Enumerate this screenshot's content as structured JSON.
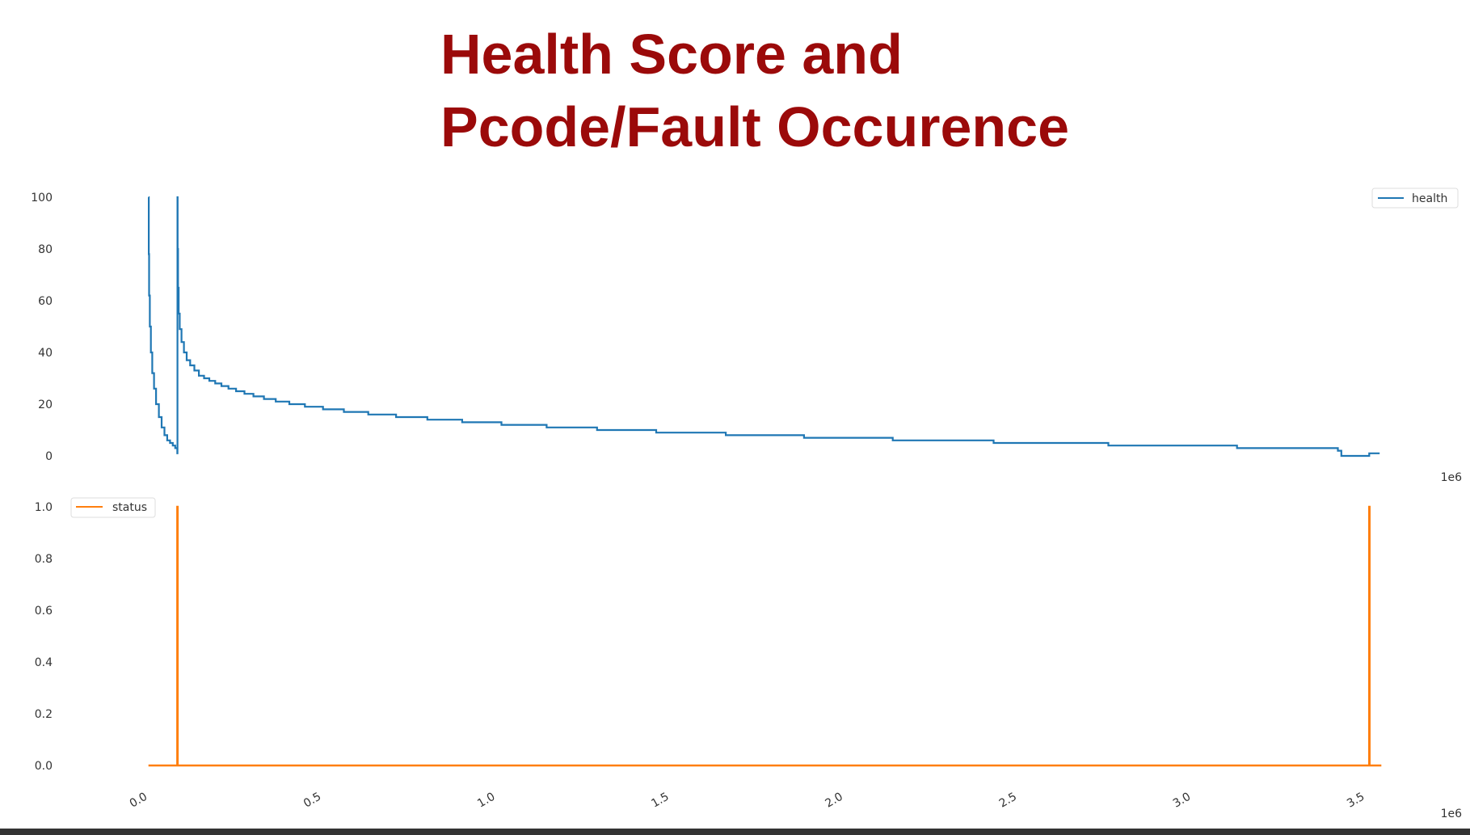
{
  "slide": {
    "title_line1": "Health Score and",
    "title_line2": "Pcode/Fault Occurence"
  },
  "colors": {
    "title": "#9b0a0a",
    "health": "#1f77b4",
    "status": "#ff7f0e",
    "tick": "#333333"
  },
  "chart_data": [
    {
      "type": "line",
      "grid": false,
      "legend_position": "top-right",
      "x_exponent_label": "1e6",
      "ylim": [
        0,
        100
      ],
      "y_ticks": [
        0,
        20,
        40,
        60,
        80,
        100
      ],
      "y_tick_labels": [
        "0",
        "20",
        "40",
        "60",
        "80",
        "100"
      ],
      "series": [
        {
          "name": "health",
          "x": [
            20000,
            21000,
            22000,
            24000,
            27000,
            31000,
            36000,
            42000,
            50000,
            58000,
            66000,
            74000,
            82000,
            90000,
            97000,
            103000,
            103500,
            104000,
            105000,
            107000,
            110000,
            115000,
            122000,
            130000,
            140000,
            152000,
            165000,
            180000,
            195000,
            212000,
            230000,
            250000,
            272000,
            296000,
            322000,
            352000,
            386000,
            425000,
            470000,
            522000,
            582000,
            652000,
            732000,
            822000,
            922000,
            1035000,
            1165000,
            1310000,
            1480000,
            1680000,
            1905000,
            2160000,
            2450000,
            2780000,
            3150000,
            3440000,
            3450000,
            3520000,
            3530000,
            3560000
          ],
          "values": [
            100,
            78,
            62,
            50,
            40,
            32,
            26,
            20,
            15,
            11,
            8,
            6,
            5,
            4,
            3,
            1,
            100,
            80,
            65,
            55,
            49,
            44,
            40,
            37,
            35,
            33,
            31,
            30,
            29,
            28,
            27,
            26,
            25,
            24,
            23,
            22,
            21,
            20,
            19,
            18,
            17,
            16,
            15,
            14,
            13,
            12,
            11,
            10,
            9,
            8,
            7,
            6,
            5,
            4,
            3,
            2,
            0,
            0,
            1,
            1
          ]
        }
      ]
    },
    {
      "type": "line",
      "grid": false,
      "legend_position": "top-left",
      "x_exponent_label": "1e6",
      "xlim": [
        -35000,
        3620000
      ],
      "x_ticks": [
        0,
        0.5,
        1.0,
        1.5,
        2.0,
        2.5,
        3.0,
        3.5
      ],
      "x_tick_labels": [
        "0.0",
        "0.5",
        "1.0",
        "1.5",
        "2.0",
        "2.5",
        "3.0",
        "3.5"
      ],
      "ylim": [
        0,
        1
      ],
      "y_ticks": [
        0,
        0.2,
        0.4,
        0.6,
        0.8,
        1.0
      ],
      "y_tick_labels": [
        "0.0",
        "0.2",
        "0.4",
        "0.6",
        "0.8",
        "1.0"
      ],
      "series": [
        {
          "name": "status",
          "x": [
            20000,
            103000,
            103000,
            104000,
            104000,
            3530000,
            3530000,
            3531000,
            3531000,
            3565000
          ],
          "values": [
            0,
            0,
            1,
            1,
            0,
            0,
            1,
            1,
            0,
            0
          ]
        }
      ]
    }
  ]
}
